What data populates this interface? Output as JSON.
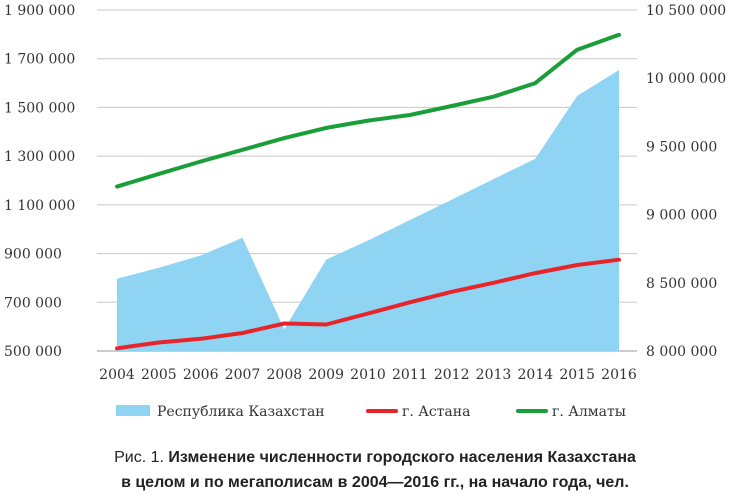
{
  "chart_data": {
    "type": "area+line",
    "categories": [
      "2004",
      "2005",
      "2006",
      "2007",
      "2008",
      "2009",
      "2010",
      "2011",
      "2012",
      "2013",
      "2014",
      "2015",
      "2016"
    ],
    "series": [
      {
        "name": "Республика Казахстан",
        "kind": "area",
        "axis": "right",
        "color": "#8fd4f2",
        "values": [
          8530000,
          8610000,
          8700000,
          8830000,
          8160000,
          8670000,
          8810000,
          8960000,
          9110000,
          9260000,
          9410000,
          9870000,
          10060000
        ]
      },
      {
        "name": "г. Астана",
        "kind": "line",
        "axis": "left",
        "color": "#e8242b",
        "values": [
          511000,
          535000,
          550000,
          574000,
          613000,
          609000,
          654000,
          700000,
          743000,
          780000,
          820000,
          853000,
          875000
        ]
      },
      {
        "name": "г. Алматы",
        "kind": "line",
        "axis": "left",
        "color": "#1a9e3a",
        "values": [
          1175000,
          1227000,
          1278000,
          1326000,
          1374000,
          1416000,
          1446000,
          1469000,
          1506000,
          1544000,
          1600000,
          1737000,
          1798000
        ]
      }
    ],
    "left_axis": {
      "ylim": [
        500000,
        1900000
      ],
      "ticks": [
        500000,
        700000,
        900000,
        1100000,
        1300000,
        1500000,
        1700000,
        1900000
      ],
      "tick_labels": [
        "500 000",
        "700 000",
        "900 000",
        "1 100 000",
        "1 300 000",
        "1 500 000",
        "1 700 000",
        "1 900 000"
      ]
    },
    "right_axis": {
      "ylim": [
        8000000,
        10500000
      ],
      "ticks": [
        8000000,
        8500000,
        9000000,
        9500000,
        10000000,
        10500000
      ],
      "tick_labels": [
        "8 000 000",
        "8 500 000",
        "9 000 000",
        "9 500 000",
        "10 000 000",
        "10 500 000"
      ]
    },
    "grid": true,
    "legend_position": "bottom"
  },
  "caption": {
    "prefix": "Рис. 1. ",
    "line1_bold": "Изменение численности городского населения Казахстана",
    "line2_bold": "в целом и по мегаполисам в 2004—2016 гг., на начало года, чел."
  }
}
